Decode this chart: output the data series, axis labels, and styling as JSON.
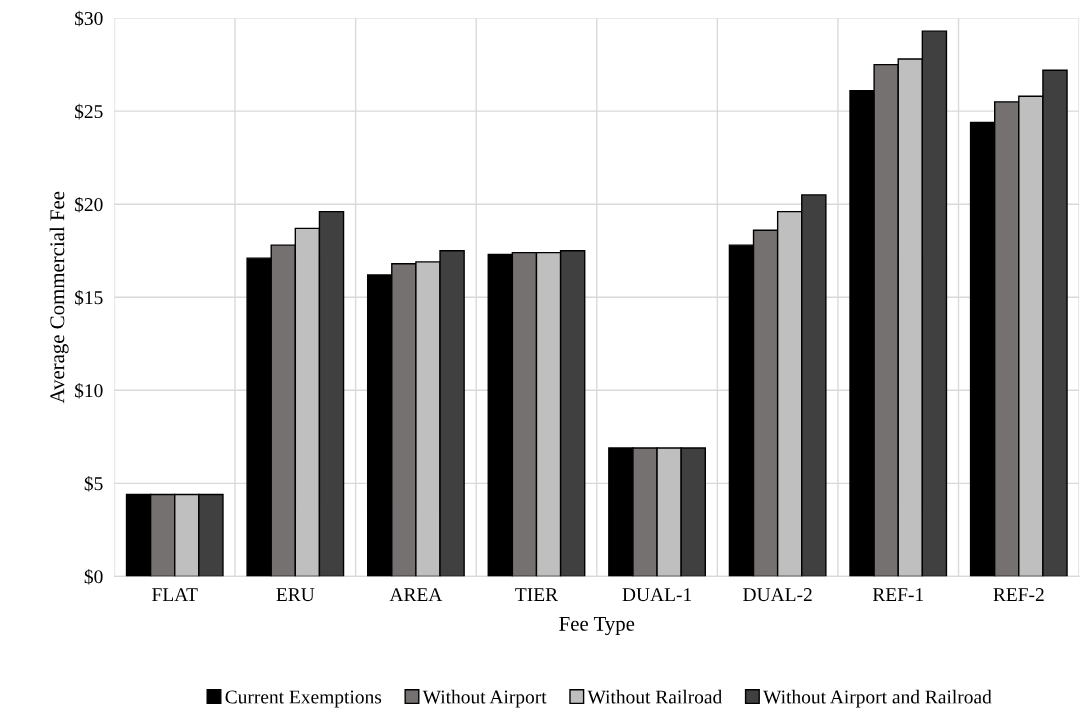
{
  "chart_data": {
    "type": "bar",
    "xlabel": "Fee Type",
    "ylabel": "Average Commercial Fee",
    "categories": [
      "FLAT",
      "ERU",
      "AREA",
      "TIER",
      "DUAL-1",
      "DUAL-2",
      "REF-1",
      "REF-2"
    ],
    "series": [
      {
        "name": "Current Exemptions",
        "color": "#000000",
        "values": [
          4.4,
          17.1,
          16.2,
          17.3,
          6.9,
          17.8,
          26.1,
          24.4
        ]
      },
      {
        "name": "Without Airport",
        "color": "#767171",
        "values": [
          4.4,
          17.8,
          16.8,
          17.4,
          6.9,
          18.6,
          27.5,
          25.5
        ]
      },
      {
        "name": "Without Railroad",
        "color": "#bfbfbf",
        "values": [
          4.4,
          18.7,
          16.9,
          17.4,
          6.9,
          19.6,
          27.8,
          25.8
        ]
      },
      {
        "name": "Without Airport and Railroad",
        "color": "#404040",
        "values": [
          4.4,
          19.6,
          17.5,
          17.5,
          6.9,
          20.5,
          29.3,
          27.2
        ]
      }
    ],
    "ylim": [
      0,
      30
    ],
    "yticks": [
      {
        "value": 0,
        "label": "$0"
      },
      {
        "value": 5,
        "label": "$5"
      },
      {
        "value": 10,
        "label": "$10"
      },
      {
        "value": 15,
        "label": "$15"
      },
      {
        "value": 20,
        "label": "$20"
      },
      {
        "value": 25,
        "label": "$25"
      },
      {
        "value": 30,
        "label": "$30"
      }
    ],
    "grid": true,
    "legend": "bottom"
  }
}
